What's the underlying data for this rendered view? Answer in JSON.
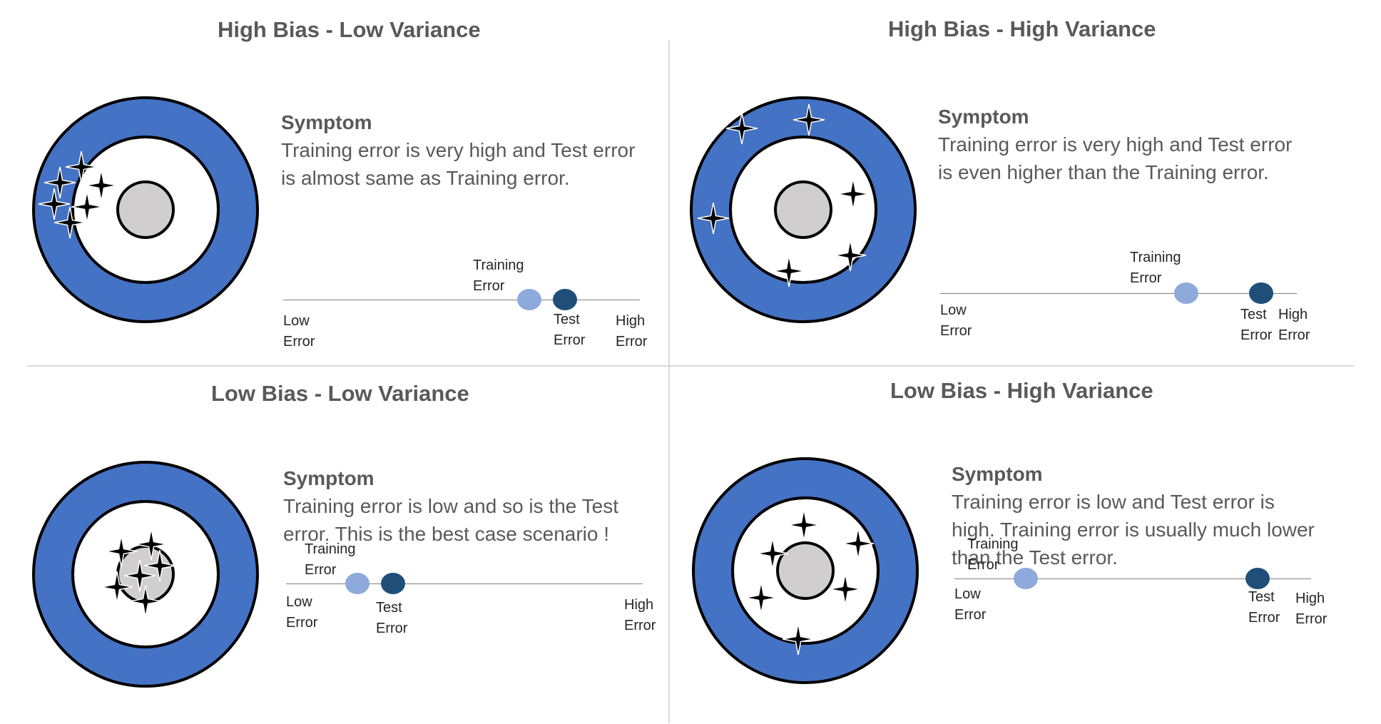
{
  "colors": {
    "ring": "#4472c4",
    "bullseye": "#d0cece",
    "training_dot": "#8ea9db",
    "test_dot": "#1f4e79",
    "shot": "#000000"
  },
  "quadrants": [
    {
      "title": "High Bias -  Low Variance",
      "symptom_head": "Symptom",
      "symptom_text": "Training error is very high and Test error is almost same as Training error.",
      "training_label": "Training\nError",
      "test_label": "Test\nError",
      "low_label": "Low\nError",
      "high_label": "High\nError",
      "training_value": 0.69,
      "test_value": 0.79
    },
    {
      "title": "High Bias -  High Variance",
      "symptom_head": "Symptom",
      "symptom_text": "Training error is very high and Test error is even higher than the Training error.",
      "training_label": "Training\nError",
      "test_label": "Test\nError",
      "low_label": "Low\nError",
      "high_label": "High\nError",
      "training_value": 0.69,
      "test_value": 0.9
    },
    {
      "title": "Low Bias -  Low Variance",
      "symptom_head": "Symptom",
      "symptom_text": "Training error is low and so is the Test error. This is the best case scenario !",
      "training_label": "Training\nError",
      "test_label": "Test\nError",
      "low_label": "Low\nError",
      "high_label": "High\nError",
      "training_value": 0.2,
      "test_value": 0.3
    },
    {
      "title": "Low Bias -  High Variance",
      "symptom_head": "Symptom",
      "symptom_text": "Training error is low and Test error is high. Training error is usually much lower than the Test error.",
      "training_label": "Training\nError",
      "test_label": "Test\nError",
      "low_label": "Low\nError",
      "high_label": "High\nError",
      "training_value": 0.2,
      "test_value": 0.85
    }
  ]
}
